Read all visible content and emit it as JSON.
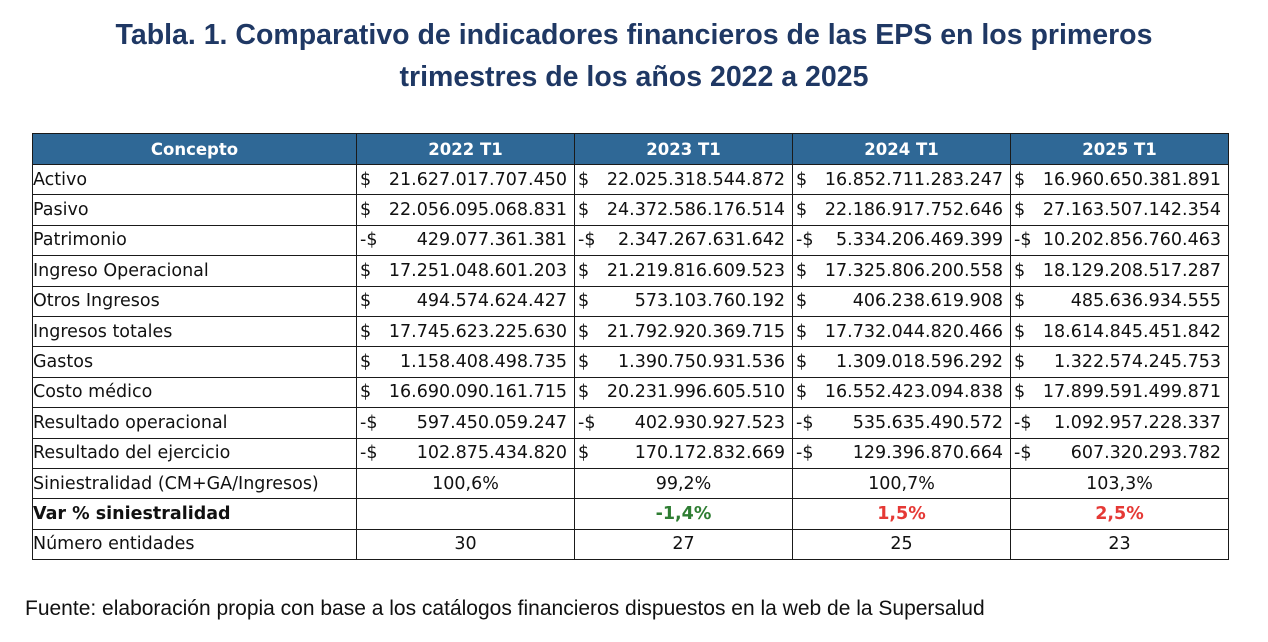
{
  "title_line1": "Tabla. 1. Comparativo de indicadores financieros de las EPS en los primeros",
  "title_line2": "trimestres de los años 2022 a 2025",
  "table": {
    "headers": [
      "Concepto",
      "2022 T1",
      "2023 T1",
      "2024 T1",
      "2025 T1"
    ],
    "money_rows": [
      {
        "concept": "Activo",
        "cells": [
          {
            "sign": "$",
            "amount": "21.627.017.707.450"
          },
          {
            "sign": "$",
            "amount": "22.025.318.544.872"
          },
          {
            "sign": "$",
            "amount": "16.852.711.283.247"
          },
          {
            "sign": "$",
            "amount": "16.960.650.381.891"
          }
        ]
      },
      {
        "concept": "Pasivo",
        "cells": [
          {
            "sign": "$",
            "amount": "22.056.095.068.831"
          },
          {
            "sign": "$",
            "amount": "24.372.586.176.514"
          },
          {
            "sign": "$",
            "amount": "22.186.917.752.646"
          },
          {
            "sign": "$",
            "amount": "27.163.507.142.354"
          }
        ]
      },
      {
        "concept": "Patrimonio",
        "cells": [
          {
            "sign": "-$",
            "amount": "429.077.361.381"
          },
          {
            "sign": "-$",
            "amount": "2.347.267.631.642"
          },
          {
            "sign": "-$",
            "amount": "5.334.206.469.399"
          },
          {
            "sign": "-$",
            "amount": "10.202.856.760.463"
          }
        ]
      },
      {
        "concept": "Ingreso Operacional",
        "cells": [
          {
            "sign": "$",
            "amount": "17.251.048.601.203"
          },
          {
            "sign": "$",
            "amount": "21.219.816.609.523"
          },
          {
            "sign": "$",
            "amount": "17.325.806.200.558"
          },
          {
            "sign": "$",
            "amount": "18.129.208.517.287"
          }
        ]
      },
      {
        "concept": "Otros Ingresos",
        "cells": [
          {
            "sign": "$",
            "amount": "494.574.624.427"
          },
          {
            "sign": "$",
            "amount": "573.103.760.192"
          },
          {
            "sign": "$",
            "amount": "406.238.619.908"
          },
          {
            "sign": "$",
            "amount": "485.636.934.555"
          }
        ]
      },
      {
        "concept": "Ingresos totales",
        "cells": [
          {
            "sign": "$",
            "amount": "17.745.623.225.630"
          },
          {
            "sign": "$",
            "amount": "21.792.920.369.715"
          },
          {
            "sign": "$",
            "amount": "17.732.044.820.466"
          },
          {
            "sign": "$",
            "amount": "18.614.845.451.842"
          }
        ]
      },
      {
        "concept": "Gastos",
        "cells": [
          {
            "sign": "$",
            "amount": "1.158.408.498.735"
          },
          {
            "sign": "$",
            "amount": "1.390.750.931.536"
          },
          {
            "sign": "$",
            "amount": "1.309.018.596.292"
          },
          {
            "sign": "$",
            "amount": "1.322.574.245.753"
          }
        ]
      },
      {
        "concept": "Costo médico",
        "cells": [
          {
            "sign": "$",
            "amount": "16.690.090.161.715"
          },
          {
            "sign": "$",
            "amount": "20.231.996.605.510"
          },
          {
            "sign": "$",
            "amount": "16.552.423.094.838"
          },
          {
            "sign": "$",
            "amount": "17.899.591.499.871"
          }
        ]
      },
      {
        "concept": "Resultado operacional",
        "cells": [
          {
            "sign": "-$",
            "amount": "597.450.059.247"
          },
          {
            "sign": "-$",
            "amount": "402.930.927.523"
          },
          {
            "sign": "-$",
            "amount": "535.635.490.572"
          },
          {
            "sign": "-$",
            "amount": "1.092.957.228.337"
          }
        ]
      },
      {
        "concept": "Resultado del ejercicio",
        "cells": [
          {
            "sign": "-$",
            "amount": "102.875.434.820"
          },
          {
            "sign": "$",
            "amount": "170.172.832.669"
          },
          {
            "sign": "-$",
            "amount": "129.396.870.664"
          },
          {
            "sign": "-$",
            "amount": "607.320.293.782"
          }
        ]
      }
    ],
    "siniestralidad": {
      "concept": "Siniestralidad (CM+GA/Ingresos)",
      "values": [
        "100,6%",
        "99,2%",
        "100,7%",
        "103,3%"
      ]
    },
    "var_siniestralidad": {
      "concept": "Var % siniestralidad",
      "values": [
        "",
        "-1,4%",
        "1,5%",
        "2,5%"
      ]
    },
    "numero_entidades": {
      "concept": "Número entidades",
      "values": [
        "30",
        "27",
        "25",
        "23"
      ]
    }
  },
  "colors": {
    "title": "#1f3864",
    "header_bg": "#2f6896",
    "header_text": "#ffffff",
    "positive_change": "#2e7d32",
    "negative_change": "#e53935"
  },
  "source": "Fuente: elaboración propia con base a los catálogos financieros dispuestos en la web de la Supersalud"
}
